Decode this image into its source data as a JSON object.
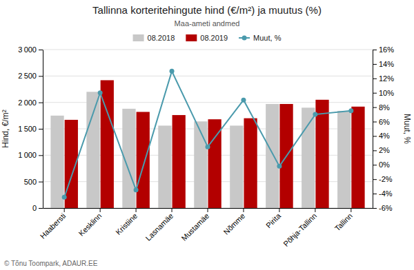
{
  "chart_data": {
    "type": "bar",
    "title": "Tallinna korteritehingute hind (€/m²) ja muutus (%)",
    "subtitle": "Maa-ameti andmed",
    "ylabel": "Hind, €/m²",
    "y2label": "Muut, %",
    "annotations": [
      "© Tõnu Toompark, ADAUR.EE"
    ],
    "categories": [
      "Haabersti",
      "Kesklinn",
      "Kristiine",
      "Lasnamäe",
      "Mustamäe",
      "Nõmme",
      "Pirita",
      "Põhja-Tallinn",
      "Tallinn"
    ],
    "series": [
      {
        "name": "08.2018",
        "type": "bar",
        "color": "#c8c8c8",
        "values": [
          1750,
          2200,
          1880,
          1560,
          1640,
          1560,
          1970,
          1900,
          1840
        ]
      },
      {
        "name": "08.2019",
        "type": "bar",
        "color": "#b30000",
        "values": [
          1670,
          2420,
          1820,
          1760,
          1680,
          1700,
          1970,
          2050,
          1920
        ]
      },
      {
        "name": "Muut, %",
        "type": "line",
        "axis": "y2",
        "marker": "circle",
        "color": "#4a9aac",
        "values": [
          -4.5,
          10.0,
          -3.5,
          13.0,
          2.5,
          9.0,
          -0.2,
          7.0,
          7.5
        ]
      }
    ],
    "ylim": [
      0,
      3000
    ],
    "yticks": [
      0,
      500,
      {
        "value": 1000,
        "label": "1 000"
      },
      {
        "value": 1500,
        "label": "1 500"
      },
      {
        "value": 2000,
        "label": "2 000"
      },
      {
        "value": 2500,
        "label": "2 500"
      },
      {
        "value": 3000,
        "label": "3 000"
      }
    ],
    "y2lim": [
      -6,
      16
    ],
    "y2ticks": [
      {
        "value": -6,
        "label": "-6%"
      },
      {
        "value": -4,
        "label": "-4%"
      },
      {
        "value": -2,
        "label": "-2%"
      },
      {
        "value": 0,
        "label": "0%"
      },
      {
        "value": 2,
        "label": "2%"
      },
      {
        "value": 4,
        "label": "4%"
      },
      {
        "value": 6,
        "label": "6%"
      },
      {
        "value": 8,
        "label": "8%"
      },
      {
        "value": 10,
        "label": "10%"
      },
      {
        "value": 12,
        "label": "12%"
      },
      {
        "value": 14,
        "label": "14%"
      },
      {
        "value": 16,
        "label": "16%"
      }
    ],
    "grid": true,
    "legend": "top"
  }
}
